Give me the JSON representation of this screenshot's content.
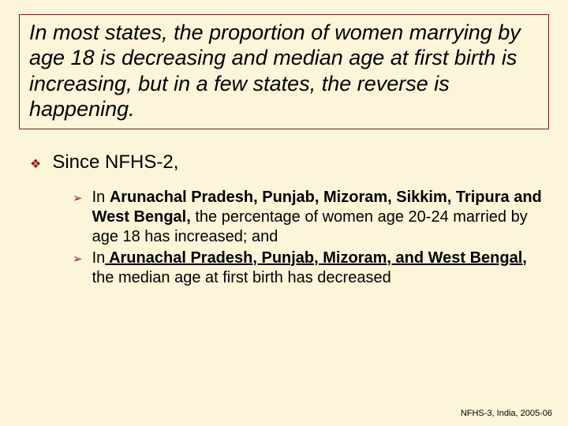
{
  "title": "In most states, the proportion of women marrying by age 18 is decreasing and median age at first birth is increasing, but in a few states, the reverse is happening.",
  "level1": {
    "bullet": "❖",
    "text": "Since NFHS-2,"
  },
  "level2": {
    "bullet": "➢",
    "item1": {
      "pre": "In ",
      "bold": "Arunachal Pradesh, Punjab, Mizoram, Sikkim, Tripura and West Bengal,",
      "post": " the percentage of women age 20-24 married by age 18 has increased; and"
    },
    "item2": {
      "pre": "In",
      "bold": " Arunachal Pradesh, Punjab, Mizoram, and West Bengal,",
      "post": " the median age at first birth has decreased"
    }
  },
  "footer": "NFHS-3, India, 2005-06",
  "colors": {
    "background": "#fdf5d9",
    "border": "#7a1a1a",
    "bullet": "#8b1a1a",
    "text": "#000000"
  }
}
